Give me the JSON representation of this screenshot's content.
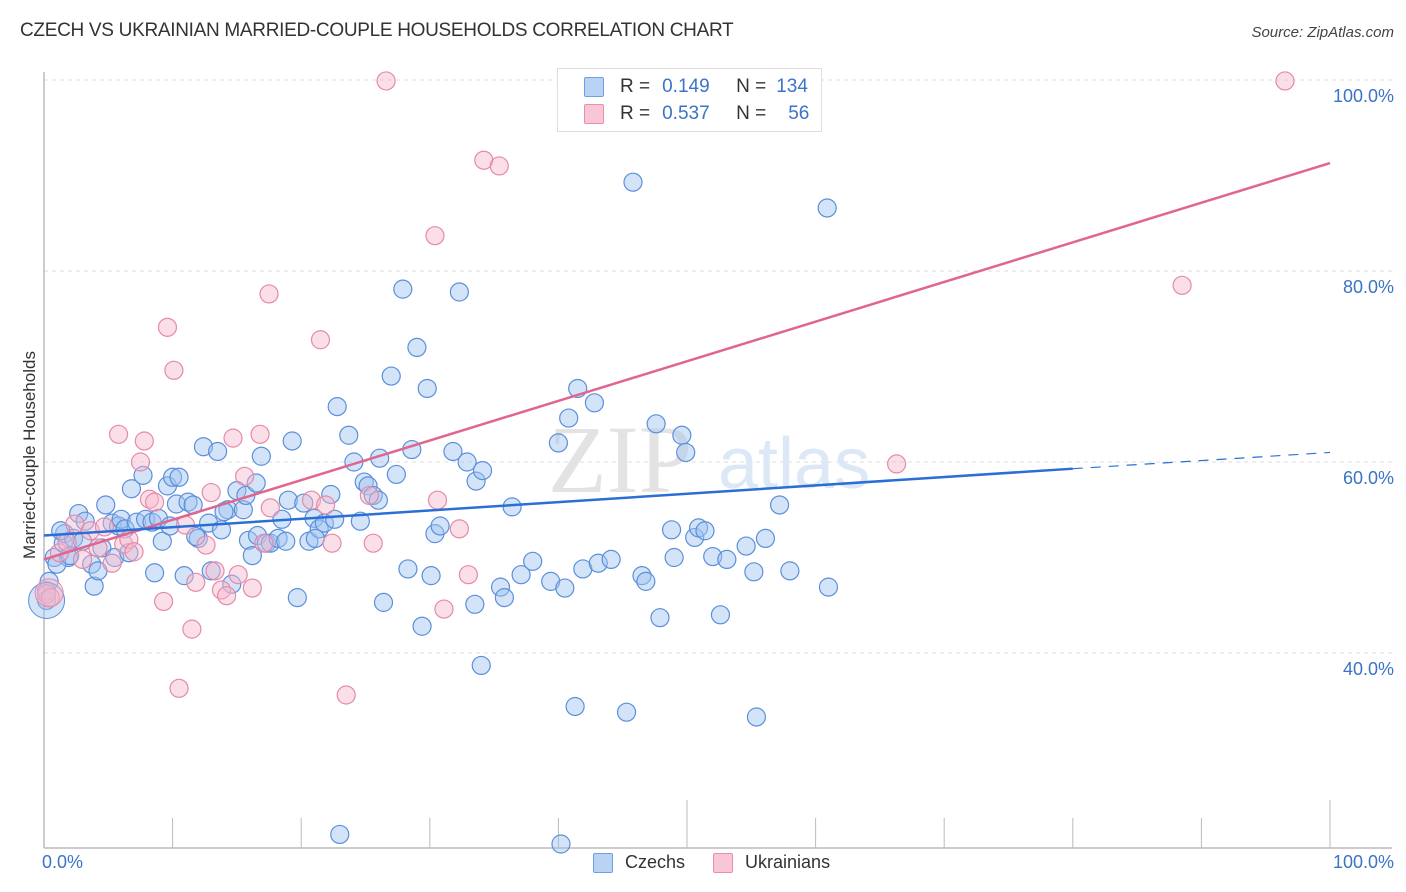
{
  "header": {
    "title": "CZECH VS UKRAINIAN MARRIED-COUPLE HOUSEHOLDS CORRELATION CHART",
    "source": "Source: ZipAtlas.com"
  },
  "legend": {
    "rows": [
      {
        "r_label": "R =",
        "r_value": "0.149",
        "n_label": "N =",
        "n_value": "134",
        "color_fill": "#b9d3f5",
        "color_stroke": "#6f9fe0"
      },
      {
        "r_label": "R =",
        "r_value": "0.537",
        "n_label": "N =",
        "n_value": "56",
        "color_fill": "#f8c6d5",
        "color_stroke": "#e890ab"
      }
    ],
    "bottom": [
      {
        "label": "Czechs",
        "color_fill": "#b9d3f5",
        "color_stroke": "#6f9fe0"
      },
      {
        "label": "Ukrainians",
        "color_fill": "#f8c6d5",
        "color_stroke": "#e890ab"
      }
    ]
  },
  "axes": {
    "ylabel": "Married-couple Households",
    "y_ticks": [
      "100.0%",
      "80.0%",
      "60.0%",
      "40.0%"
    ],
    "x_ticks": [
      "0.0%",
      "100.0%"
    ]
  },
  "watermark": {
    "zip": "ZIP",
    "atlas": "atlas"
  },
  "colors": {
    "blue_line": "#2b6fd6",
    "pink_line": "#e06690",
    "blue_fill": "rgba(160,196,240,0.45)",
    "blue_stroke": "#5b8fdb",
    "pink_fill": "rgba(246,184,204,0.45)",
    "pink_stroke": "#e58aa9",
    "tick_text": "#3b73c8"
  },
  "chart_data": {
    "type": "scatter",
    "title": "CZECH VS UKRAINIAN MARRIED-COUPLE HOUSEHOLDS CORRELATION CHART",
    "xlabel": "",
    "ylabel": "Married-couple Households",
    "xlim": [
      0,
      100
    ],
    "ylim": [
      20,
      100
    ],
    "y_gridlines": [
      100,
      80,
      60,
      40
    ],
    "legend_position": "top-center",
    "series": [
      {
        "name": "Czechs",
        "R": 0.149,
        "N": 134,
        "trend": {
          "x0": 0,
          "y0": 52.3,
          "x1": 80,
          "y1": 59.3,
          "dashed_to_x": 100,
          "dashed_to_y": 61.0
        },
        "points": [
          [
            0.2,
            45.5
          ],
          [
            0.4,
            47.5
          ],
          [
            0.8,
            50.0
          ],
          [
            1.5,
            51.5
          ],
          [
            1.6,
            52.5
          ],
          [
            1.9,
            50.0
          ],
          [
            2.3,
            52.0
          ],
          [
            2.7,
            54.6
          ],
          [
            3.0,
            51.7
          ],
          [
            3.7,
            49.3
          ],
          [
            3.9,
            47.0
          ],
          [
            4.2,
            48.6
          ],
          [
            4.5,
            51.0
          ],
          [
            5.3,
            53.6
          ],
          [
            5.5,
            50.0
          ],
          [
            5.8,
            53.3
          ],
          [
            6.0,
            54.0
          ],
          [
            6.3,
            53.0
          ],
          [
            6.8,
            57.2
          ],
          [
            7.2,
            53.7
          ],
          [
            7.7,
            58.6
          ],
          [
            7.9,
            54.0
          ],
          [
            8.4,
            53.7
          ],
          [
            8.6,
            48.4
          ],
          [
            8.9,
            54.1
          ],
          [
            9.2,
            51.7
          ],
          [
            9.6,
            57.5
          ],
          [
            10.0,
            58.4
          ],
          [
            10.3,
            55.6
          ],
          [
            10.5,
            58.4
          ],
          [
            10.9,
            48.1
          ],
          [
            11.2,
            55.8
          ],
          [
            11.6,
            55.5
          ],
          [
            12.0,
            52.0
          ],
          [
            12.4,
            61.6
          ],
          [
            12.8,
            53.6
          ],
          [
            13.0,
            48.6
          ],
          [
            13.5,
            61.1
          ],
          [
            13.8,
            52.9
          ],
          [
            14.3,
            55.0
          ],
          [
            14.6,
            47.2
          ],
          [
            15.0,
            57.0
          ],
          [
            15.5,
            55.0
          ],
          [
            15.7,
            56.5
          ],
          [
            15.9,
            51.8
          ],
          [
            16.2,
            50.2
          ],
          [
            16.6,
            52.3
          ],
          [
            16.9,
            60.6
          ],
          [
            17.3,
            51.5
          ],
          [
            17.6,
            51.5
          ],
          [
            18.2,
            52.0
          ],
          [
            18.5,
            54.0
          ],
          [
            19.0,
            56.0
          ],
          [
            19.3,
            62.2
          ],
          [
            19.7,
            45.8
          ],
          [
            20.2,
            55.7
          ],
          [
            20.6,
            51.7
          ],
          [
            21.0,
            54.1
          ],
          [
            21.4,
            53.0
          ],
          [
            21.8,
            53.6
          ],
          [
            22.3,
            56.6
          ],
          [
            22.6,
            54.0
          ],
          [
            22.8,
            65.8
          ],
          [
            23.0,
            21.0
          ],
          [
            23.7,
            62.8
          ],
          [
            24.1,
            60.0
          ],
          [
            24.6,
            53.8
          ],
          [
            24.9,
            57.9
          ],
          [
            25.2,
            57.5
          ],
          [
            25.6,
            56.5
          ],
          [
            26.1,
            60.4
          ],
          [
            26.4,
            45.3
          ],
          [
            27.0,
            69.0
          ],
          [
            27.4,
            58.7
          ],
          [
            27.9,
            78.1
          ],
          [
            28.3,
            48.8
          ],
          [
            28.6,
            61.3
          ],
          [
            29.0,
            72.0
          ],
          [
            29.4,
            42.8
          ],
          [
            29.8,
            67.7
          ],
          [
            30.1,
            48.1
          ],
          [
            30.4,
            52.5
          ],
          [
            30.8,
            53.3
          ],
          [
            31.8,
            61.1
          ],
          [
            32.3,
            77.8
          ],
          [
            32.9,
            60.0
          ],
          [
            33.5,
            45.1
          ],
          [
            33.6,
            58.0
          ],
          [
            34.0,
            38.7
          ],
          [
            34.1,
            59.1
          ],
          [
            35.5,
            46.9
          ],
          [
            35.8,
            45.8
          ],
          [
            36.4,
            55.3
          ],
          [
            37.1,
            48.2
          ],
          [
            38.0,
            49.6
          ],
          [
            39.4,
            47.5
          ],
          [
            40.0,
            62.0
          ],
          [
            40.5,
            46.8
          ],
          [
            40.2,
            20.0
          ],
          [
            40.8,
            64.6
          ],
          [
            41.5,
            67.7
          ],
          [
            41.9,
            48.8
          ],
          [
            41.3,
            34.4
          ],
          [
            42.8,
            66.2
          ],
          [
            43.1,
            49.4
          ],
          [
            44.1,
            49.8
          ],
          [
            45.3,
            33.8
          ],
          [
            45.8,
            89.3
          ],
          [
            46.5,
            48.1
          ],
          [
            46.8,
            47.5
          ],
          [
            47.6,
            64.0
          ],
          [
            47.9,
            43.7
          ],
          [
            48.8,
            52.9
          ],
          [
            49.0,
            50.0
          ],
          [
            49.6,
            62.8
          ],
          [
            49.9,
            61.0
          ],
          [
            50.6,
            52.1
          ],
          [
            50.9,
            53.1
          ],
          [
            51.4,
            52.8
          ],
          [
            52.0,
            50.1
          ],
          [
            52.6,
            44.0
          ],
          [
            53.1,
            49.8
          ],
          [
            54.6,
            51.2
          ],
          [
            55.2,
            48.5
          ],
          [
            55.4,
            33.3
          ],
          [
            56.1,
            52.0
          ],
          [
            57.2,
            55.5
          ],
          [
            58.0,
            48.6
          ],
          [
            60.9,
            86.6
          ],
          [
            61.0,
            46.9
          ],
          [
            0.2,
            46.5
          ],
          [
            1.0,
            49.3
          ],
          [
            1.3,
            52.8
          ],
          [
            2.0,
            50.2
          ],
          [
            3.2,
            53.8
          ],
          [
            4.8,
            55.5
          ],
          [
            6.6,
            50.5
          ],
          [
            9.8,
            53.3
          ],
          [
            11.8,
            52.2
          ],
          [
            14.0,
            54.8
          ],
          [
            16.5,
            57.8
          ],
          [
            18.8,
            51.7
          ],
          [
            21.1,
            52.0
          ],
          [
            26.0,
            56.0
          ]
        ]
      },
      {
        "name": "Ukrainians",
        "R": 0.537,
        "N": 56,
        "trend": {
          "x0": 0,
          "y0": 49.8,
          "x1": 100,
          "y1": 91.3
        },
        "points": [
          [
            0.2,
            46.2
          ],
          [
            0.5,
            45.8
          ],
          [
            1.2,
            50.5
          ],
          [
            1.8,
            51.6
          ],
          [
            2.4,
            53.5
          ],
          [
            3.0,
            49.8
          ],
          [
            3.6,
            52.8
          ],
          [
            4.2,
            51.0
          ],
          [
            4.7,
            53.2
          ],
          [
            5.3,
            49.4
          ],
          [
            5.8,
            62.9
          ],
          [
            6.2,
            51.4
          ],
          [
            6.6,
            51.9
          ],
          [
            7.0,
            50.6
          ],
          [
            7.5,
            60.0
          ],
          [
            7.8,
            62.2
          ],
          [
            8.2,
            56.1
          ],
          [
            8.6,
            55.8
          ],
          [
            9.3,
            45.4
          ],
          [
            9.6,
            74.1
          ],
          [
            10.1,
            69.6
          ],
          [
            10.5,
            36.3
          ],
          [
            11.0,
            53.4
          ],
          [
            11.5,
            42.5
          ],
          [
            11.8,
            47.4
          ],
          [
            12.6,
            51.3
          ],
          [
            13.0,
            56.8
          ],
          [
            13.3,
            48.6
          ],
          [
            13.8,
            46.6
          ],
          [
            14.2,
            46.0
          ],
          [
            14.7,
            62.5
          ],
          [
            15.1,
            48.2
          ],
          [
            15.6,
            58.5
          ],
          [
            16.2,
            46.8
          ],
          [
            16.8,
            62.9
          ],
          [
            17.1,
            51.5
          ],
          [
            17.6,
            55.2
          ],
          [
            17.5,
            77.6
          ],
          [
            20.8,
            56.0
          ],
          [
            21.5,
            72.8
          ],
          [
            21.9,
            55.5
          ],
          [
            22.4,
            51.5
          ],
          [
            23.5,
            35.6
          ],
          [
            25.3,
            56.5
          ],
          [
            25.6,
            51.5
          ],
          [
            26.6,
            99.9
          ],
          [
            30.6,
            56.0
          ],
          [
            30.4,
            83.7
          ],
          [
            31.1,
            44.6
          ],
          [
            32.3,
            53.0
          ],
          [
            33.0,
            48.2
          ],
          [
            34.2,
            91.6
          ],
          [
            35.4,
            91.0
          ],
          [
            66.3,
            59.8
          ],
          [
            88.5,
            78.5
          ],
          [
            96.5,
            99.9
          ]
        ]
      }
    ]
  }
}
